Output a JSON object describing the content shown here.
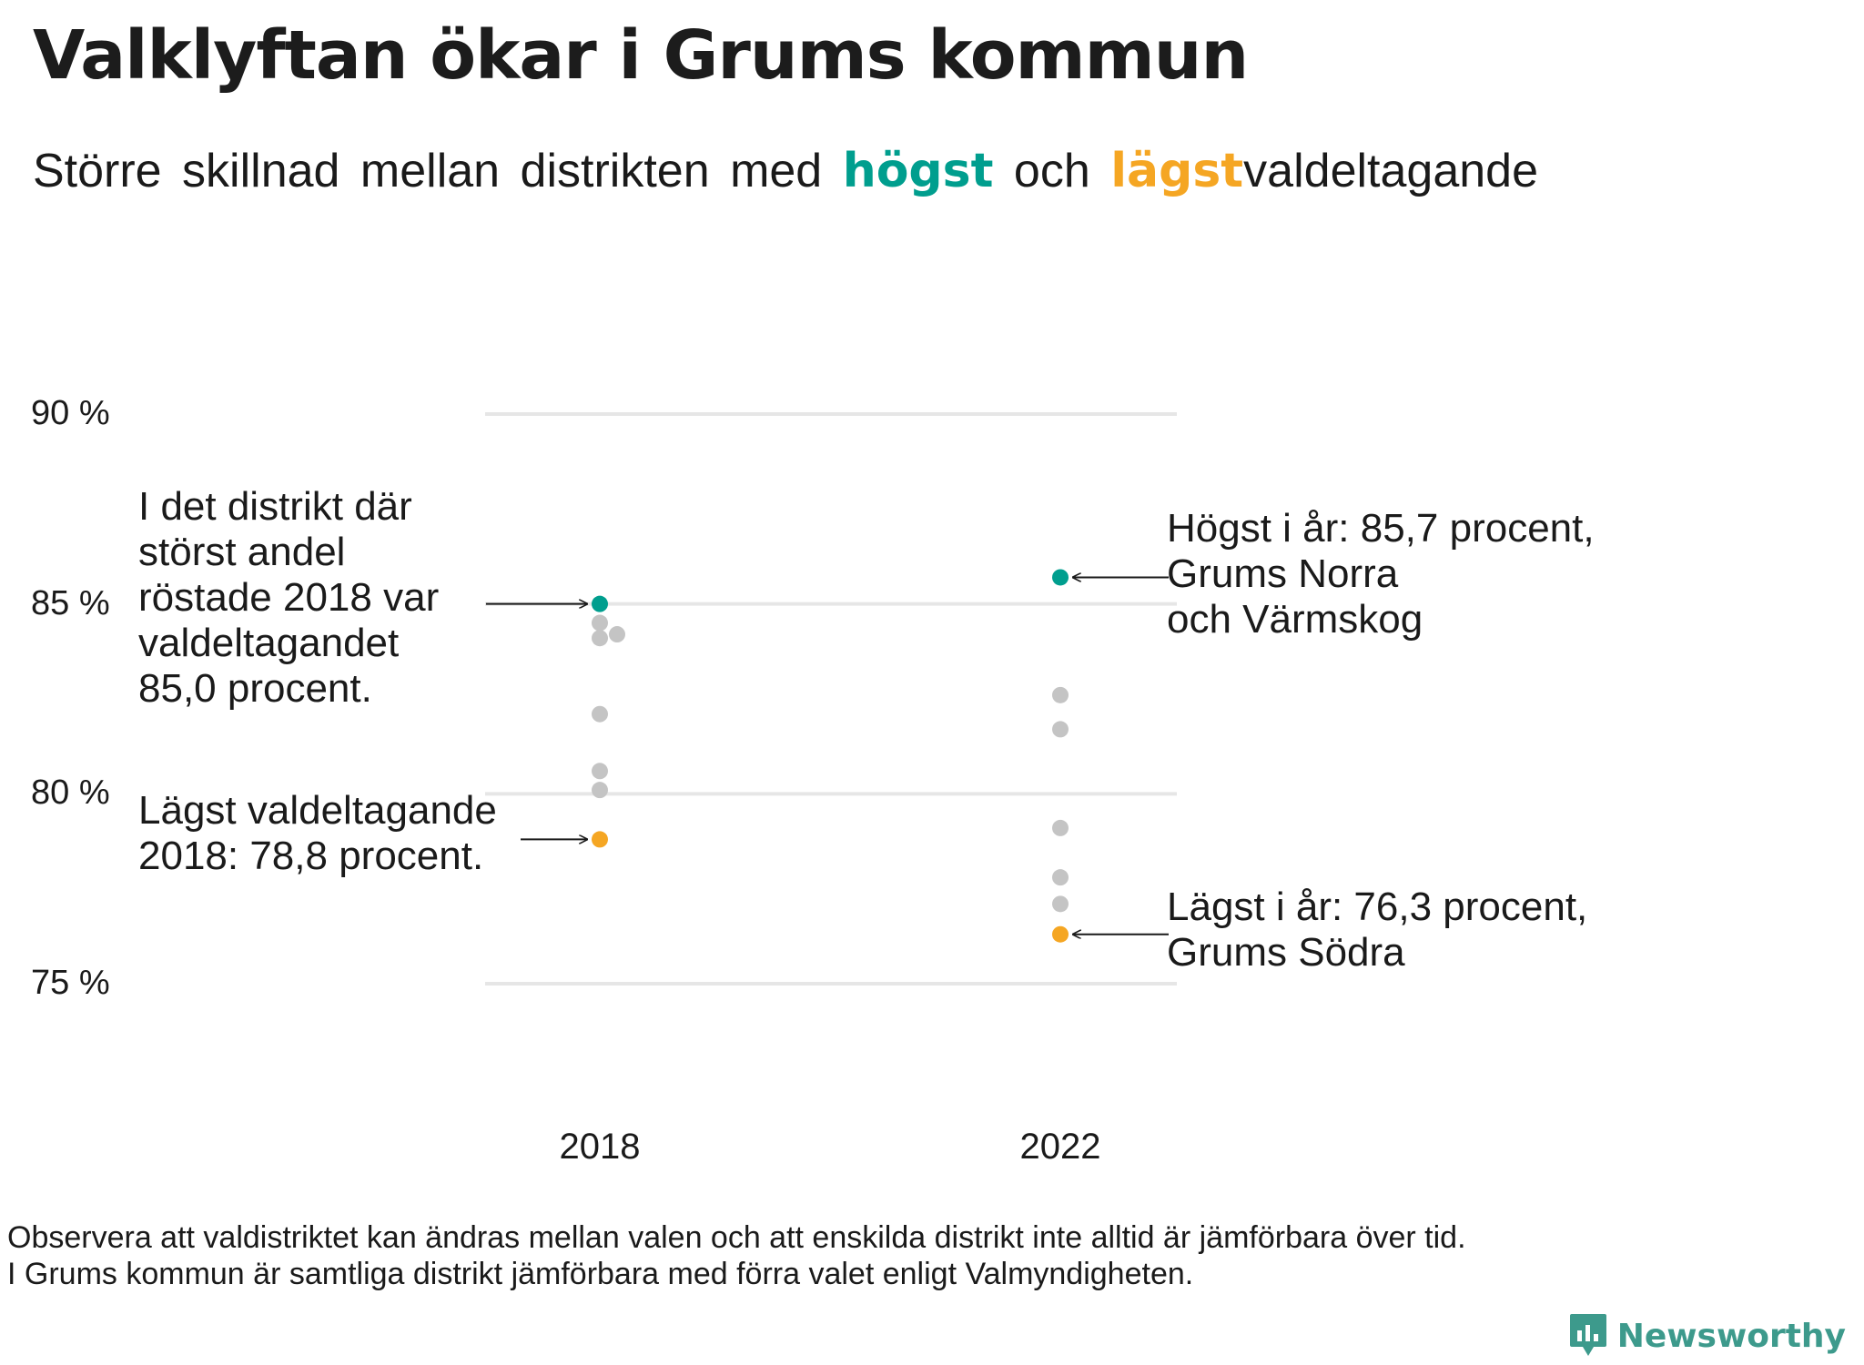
{
  "title": "Valklyftan ökar i Grums kommun",
  "subtitle": {
    "part1": "Större skillnad mellan distrikten med",
    "highest": "högst",
    "and": "och",
    "lowest": "lägst",
    "part2": "valdeltagande"
  },
  "colors": {
    "highest": "#009E8E",
    "lowest": "#F5A623",
    "other": "#C4C4C4",
    "grid": "#E6E6E6"
  },
  "chart_data": {
    "type": "scatter",
    "title": "Valklyftan ökar i Grums kommun",
    "xlabel": "",
    "ylabel": "",
    "categories": [
      "2018",
      "2022"
    ],
    "ylim": [
      75,
      90
    ],
    "yticks": [
      {
        "value": 90,
        "label": "90 %"
      },
      {
        "value": 85,
        "label": "85 %"
      },
      {
        "value": 80,
        "label": "80 %"
      },
      {
        "value": 75,
        "label": "75 %"
      }
    ],
    "grid": true,
    "points": [
      {
        "x": "2018",
        "y": 85.0,
        "group": "highest"
      },
      {
        "x": "2018",
        "y": 84.5,
        "group": "other"
      },
      {
        "x": "2018",
        "y": 84.1,
        "group": "other"
      },
      {
        "x": "2018",
        "y": 84.2,
        "group": "other",
        "jitter": true
      },
      {
        "x": "2018",
        "y": 82.1,
        "group": "other"
      },
      {
        "x": "2018",
        "y": 80.6,
        "group": "other"
      },
      {
        "x": "2018",
        "y": 80.1,
        "group": "other"
      },
      {
        "x": "2018",
        "y": 78.8,
        "group": "lowest"
      },
      {
        "x": "2022",
        "y": 85.7,
        "group": "highest"
      },
      {
        "x": "2022",
        "y": 82.6,
        "group": "other"
      },
      {
        "x": "2022",
        "y": 81.7,
        "group": "other"
      },
      {
        "x": "2022",
        "y": 79.1,
        "group": "other"
      },
      {
        "x": "2022",
        "y": 77.8,
        "group": "other"
      },
      {
        "x": "2022",
        "y": 77.1,
        "group": "other"
      },
      {
        "x": "2022",
        "y": 76.3,
        "group": "lowest"
      }
    ]
  },
  "annotations": {
    "high_2018": [
      "I det distrikt där",
      "störst andel",
      "röstade 2018 var",
      "valdeltagandet",
      "85,0 procent."
    ],
    "low_2018": [
      "Lägst valdeltagande",
      "2018: 78,8 procent."
    ],
    "high_2022": [
      "Högst i år: 85,7 procent,",
      "Grums Norra",
      "och Värmskog"
    ],
    "low_2022": [
      "Lägst i år: 76,3 procent,",
      "Grums Södra"
    ]
  },
  "footnote": [
    "Observera att valdistriktet kan ändras mellan valen och att enskilda distrikt inte alltid är jämförbara över tid.",
    "I Grums kommun är samtliga distrikt jämförbara med förra valet enligt Valmyndigheten."
  ],
  "logo": {
    "text": "Newsworthy",
    "icon": "newsworthy-logo-icon"
  }
}
